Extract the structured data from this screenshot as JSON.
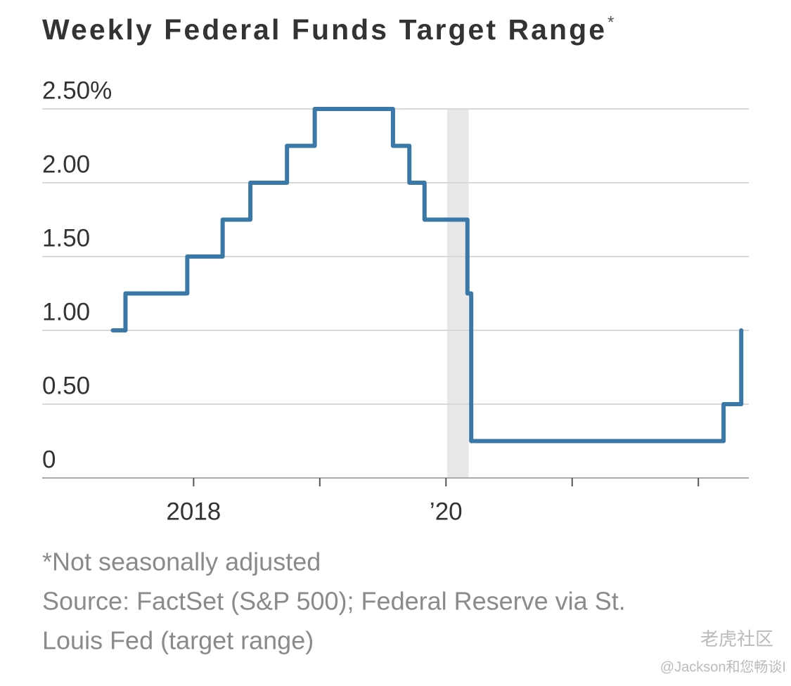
{
  "chart_data": {
    "type": "step-line",
    "title": "Weekly Federal Funds Target Range",
    "title_mark": "*",
    "footnote": "*Not seasonally adjusted",
    "source": [
      "Source: FactSet (S&P 500); Federal Reserve via St.",
      "Louis Fed (target range)"
    ],
    "watermark": [
      "老虎社区",
      "@Jackson和您畅谈I"
    ],
    "x": [
      2017.36,
      2017.46,
      2017.95,
      2018.23,
      2018.45,
      2018.74,
      2018.96,
      2019.58,
      2019.71,
      2019.83,
      2020.17,
      2020.2,
      2022.2,
      2022.34
    ],
    "values": [
      1.0,
      1.25,
      1.5,
      1.75,
      2.0,
      2.25,
      2.5,
      2.25,
      2.0,
      1.75,
      1.25,
      0.25,
      0.5,
      1.0
    ],
    "color": "#3a78a8",
    "shaded_regions": [
      [
        2020.01,
        2020.18
      ]
    ],
    "shade_color": "#e8e8e8",
    "xlim": [
      2016.8,
      2022.4
    ],
    "xticks": [
      2018,
      2019,
      2020,
      2021,
      2022
    ],
    "xlabels": [
      2018,
      {
        "value": 2020,
        "label": "’20"
      }
    ],
    "ylim": [
      0,
      2.5
    ],
    "yticks": [
      0,
      {
        "value": 0.5,
        "label": "0.50"
      },
      {
        "value": 1.0,
        "label": "1.00"
      },
      {
        "value": 1.5,
        "label": "1.50"
      },
      {
        "value": 2.0,
        "label": "2.00"
      },
      {
        "value": 2.5,
        "label": "2.50%"
      }
    ],
    "grid": true
  }
}
